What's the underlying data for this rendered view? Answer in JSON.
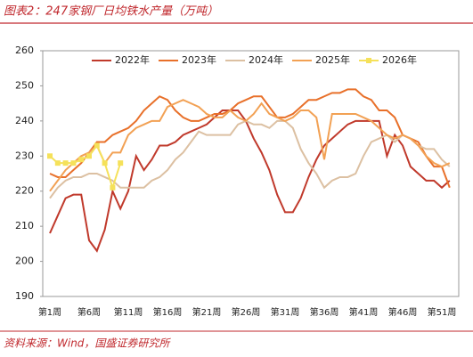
{
  "title": "图表2：247家钢厂日均铁水产量（万吨）",
  "source": "资料来源：Wind，国盛证券研究所",
  "chart_data": {
    "type": "line",
    "categories": [
      "第1周",
      null,
      null,
      null,
      null,
      "第6周",
      null,
      null,
      null,
      null,
      "第11周",
      null,
      null,
      null,
      null,
      "第16周",
      null,
      null,
      null,
      null,
      "第21周",
      null,
      null,
      null,
      null,
      "第26周",
      null,
      null,
      null,
      null,
      "第31周",
      null,
      null,
      null,
      null,
      "第36周",
      null,
      null,
      null,
      null,
      "第41周",
      null,
      null,
      null,
      null,
      "第46周",
      null,
      null,
      null,
      null,
      "第51周",
      null
    ],
    "ylim": [
      190,
      260
    ],
    "yticks": [
      190,
      200,
      210,
      220,
      230,
      240,
      250,
      260
    ],
    "series": [
      {
        "name": "2022年",
        "color": "#c0392b",
        "values": [
          208,
          213,
          218,
          219,
          219,
          206,
          203,
          209,
          220,
          215,
          220,
          230,
          226,
          229,
          233,
          233,
          234,
          236,
          237,
          238,
          239,
          241,
          243,
          243,
          243,
          240,
          235,
          231,
          226,
          219,
          214,
          214,
          218,
          224,
          229,
          233,
          235,
          237,
          239,
          240,
          240,
          240,
          240,
          230,
          236,
          233,
          227,
          225,
          223,
          223,
          221,
          223
        ]
      },
      {
        "name": "2023年",
        "color": "#e8702a",
        "values": [
          225,
          224,
          224,
          226,
          228,
          231,
          234,
          234,
          236,
          237,
          238,
          240,
          243,
          245,
          247,
          246,
          243,
          241,
          240,
          240,
          241,
          242,
          242,
          243,
          245,
          246,
          247,
          247,
          244,
          241,
          241,
          242,
          244,
          246,
          246,
          247,
          248,
          248,
          249,
          249,
          247,
          246,
          243,
          243,
          241,
          236,
          235,
          234,
          230,
          227,
          227,
          221
        ]
      },
      {
        "name": "2024年",
        "color": "#dcc0a2",
        "values": [
          218,
          221,
          223,
          224,
          224,
          225,
          225,
          224,
          223,
          221,
          221,
          221,
          221,
          223,
          224,
          226,
          229,
          231,
          234,
          237,
          236,
          236,
          236,
          236,
          239,
          240,
          239,
          239,
          238,
          240,
          240,
          238,
          232,
          228,
          225,
          221,
          223,
          224,
          224,
          225,
          230,
          234,
          235,
          236,
          234,
          236,
          235,
          233,
          232,
          232,
          229,
          227
        ]
      },
      {
        "name": "2025年",
        "color": "#f2a154",
        "values": [
          220,
          223,
          226,
          228,
          230,
          231,
          233,
          228,
          231,
          231,
          236,
          238,
          239,
          240,
          240,
          244,
          245,
          246,
          245,
          244,
          242,
          241,
          241,
          243,
          241,
          240,
          242,
          245,
          242,
          241,
          240,
          241,
          243,
          243,
          241,
          229,
          242,
          242,
          242,
          242,
          241,
          240,
          238,
          236,
          235,
          236,
          235,
          233,
          230,
          228,
          227,
          228
        ]
      },
      {
        "name": "2026年",
        "color": "#f5e15a",
        "values": [
          230,
          228,
          228,
          228,
          229,
          230,
          233,
          228,
          221,
          228,
          null,
          null,
          null,
          null,
          null,
          null,
          null,
          null,
          null,
          null,
          null,
          null,
          null,
          null,
          null,
          null,
          null,
          null,
          null,
          null,
          null,
          null,
          null,
          null,
          null,
          null,
          null,
          null,
          null,
          null,
          null,
          null,
          null,
          null,
          null,
          null,
          null,
          null,
          null,
          null,
          null,
          null
        ]
      }
    ]
  }
}
